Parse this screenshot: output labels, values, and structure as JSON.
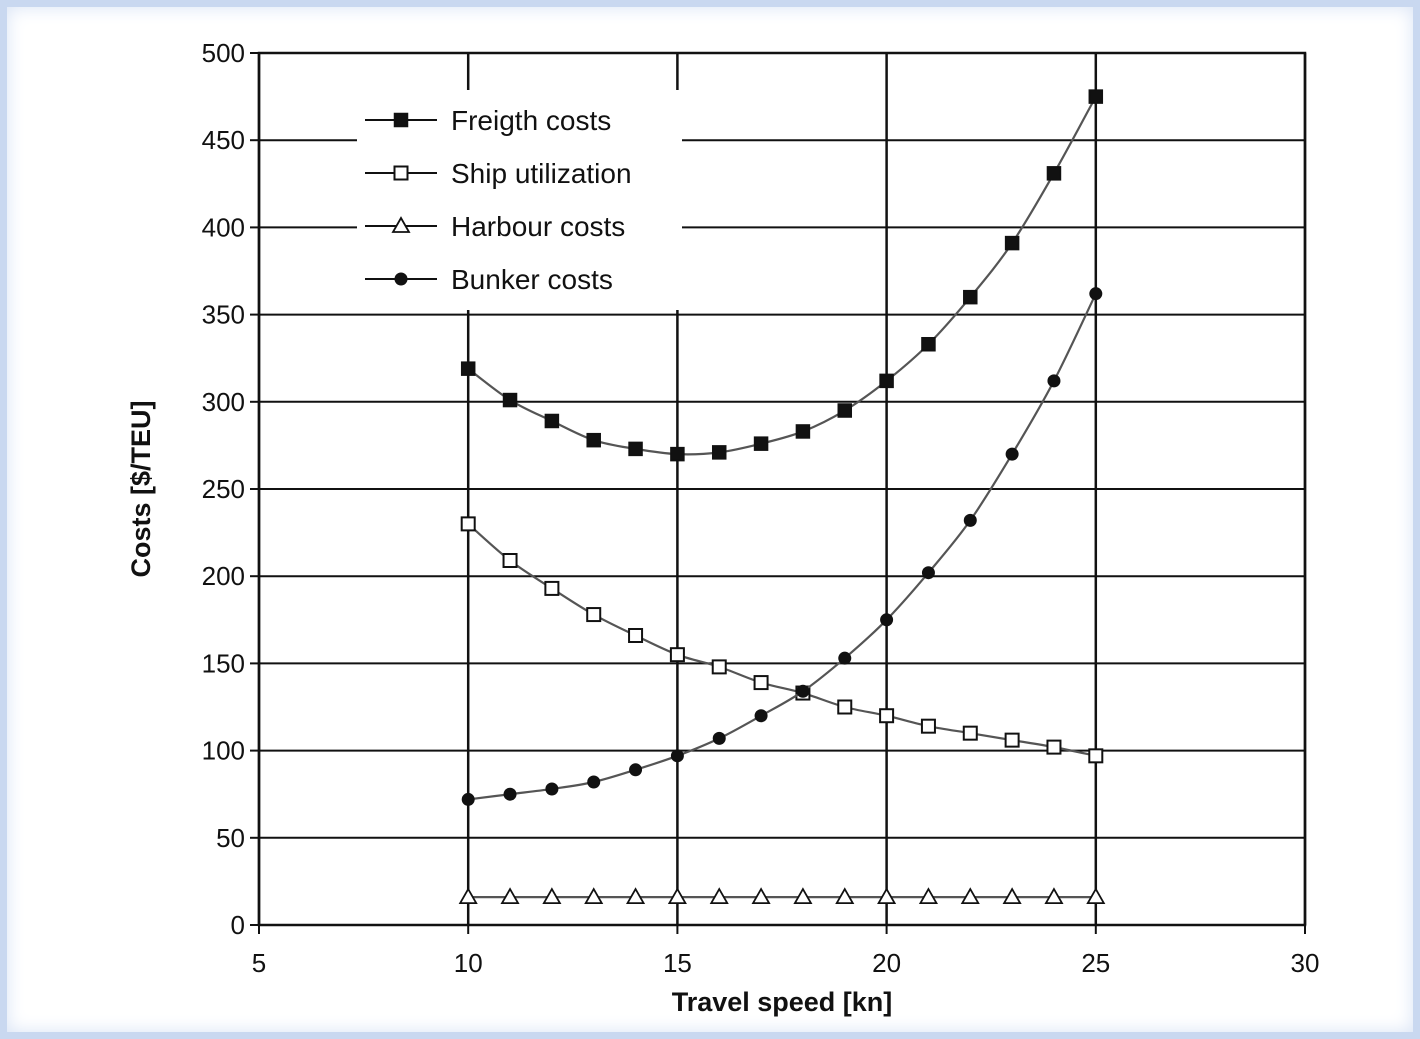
{
  "chart_data": {
    "type": "line",
    "title": "",
    "xlabel": "Travel speed [kn]",
    "ylabel": "Costs [$/TEU]",
    "xlim": [
      5,
      30
    ],
    "ylim": [
      0,
      500
    ],
    "xticks": [
      5,
      10,
      15,
      20,
      25,
      30
    ],
    "yticks": [
      0,
      50,
      100,
      150,
      200,
      250,
      300,
      350,
      400,
      450,
      500
    ],
    "grid": true,
    "legend_position": "top-left",
    "x": [
      10,
      11,
      12,
      13,
      14,
      15,
      16,
      17,
      18,
      19,
      20,
      21,
      22,
      23,
      24,
      25
    ],
    "series": [
      {
        "name": "Freigth costs",
        "marker": "filled-square",
        "values": [
          319,
          301,
          289,
          278,
          273,
          270,
          271,
          276,
          283,
          295,
          312,
          333,
          360,
          391,
          431,
          475
        ]
      },
      {
        "name": "Ship utilization",
        "marker": "open-square",
        "values": [
          230,
          209,
          193,
          178,
          166,
          155,
          148,
          139,
          133,
          125,
          120,
          114,
          110,
          106,
          102,
          97
        ]
      },
      {
        "name": "Harbour costs",
        "marker": "open-triangle",
        "values": [
          16,
          16,
          16,
          16,
          16,
          16,
          16,
          16,
          16,
          16,
          16,
          16,
          16,
          16,
          16,
          16
        ]
      },
      {
        "name": "Bunker costs",
        "marker": "filled-circle",
        "values": [
          72,
          75,
          78,
          82,
          89,
          97,
          107,
          120,
          134,
          153,
          175,
          202,
          232,
          270,
          312,
          362
        ]
      }
    ],
    "colors": {
      "line": "#555555",
      "marker": "#111111",
      "grid": "#111111"
    }
  }
}
